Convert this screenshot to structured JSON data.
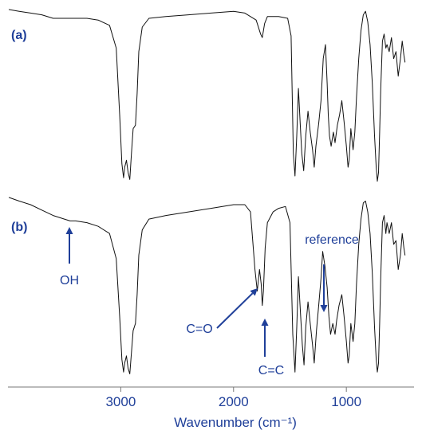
{
  "chart_data": {
    "type": "line",
    "title": "",
    "xlabel": "Wavenumber (cm⁻¹)",
    "ylabel": "",
    "x_reversed": true,
    "xlim": [
      4000,
      400
    ],
    "grid": false,
    "legend": "none",
    "x_ticks": [
      {
        "value": 3000,
        "label": "3000"
      },
      {
        "value": 2000,
        "label": "2000"
      },
      {
        "value": 1000,
        "label": "1000"
      }
    ],
    "panels": [
      {
        "label": "(a)",
        "series": [
          {
            "values": [
              [
                3990,
                1.0
              ],
              [
                3900,
                0.99
              ],
              [
                3800,
                0.98
              ],
              [
                3700,
                0.97
              ],
              [
                3600,
                0.95
              ],
              [
                3500,
                0.95
              ],
              [
                3400,
                0.95
              ],
              [
                3300,
                0.95
              ],
              [
                3200,
                0.94
              ],
              [
                3100,
                0.91
              ],
              [
                3040,
                0.78
              ],
              [
                3010,
                0.4
              ],
              [
                2990,
                0.12
              ],
              [
                2975,
                0.04
              ],
              [
                2965,
                0.1
              ],
              [
                2950,
                0.14
              ],
              [
                2935,
                0.07
              ],
              [
                2920,
                0.03
              ],
              [
                2905,
                0.18
              ],
              [
                2890,
                0.32
              ],
              [
                2870,
                0.34
              ],
              [
                2855,
                0.52
              ],
              [
                2840,
                0.76
              ],
              [
                2810,
                0.9
              ],
              [
                2750,
                0.95
              ],
              [
                2600,
                0.96
              ],
              [
                2400,
                0.97
              ],
              [
                2200,
                0.98
              ],
              [
                2000,
                0.99
              ],
              [
                1900,
                0.98
              ],
              [
                1800,
                0.94
              ],
              [
                1760,
                0.86
              ],
              [
                1745,
                0.84
              ],
              [
                1725,
                0.92
              ],
              [
                1700,
                0.96
              ],
              [
                1600,
                0.96
              ],
              [
                1520,
                0.95
              ],
              [
                1490,
                0.85
              ],
              [
                1470,
                0.18
              ],
              [
                1455,
                0.05
              ],
              [
                1440,
                0.28
              ],
              [
                1425,
                0.55
              ],
              [
                1410,
                0.36
              ],
              [
                1395,
                0.18
              ],
              [
                1378,
                0.08
              ],
              [
                1360,
                0.28
              ],
              [
                1340,
                0.42
              ],
              [
                1320,
                0.3
              ],
              [
                1300,
                0.2
              ],
              [
                1285,
                0.1
              ],
              [
                1270,
                0.22
              ],
              [
                1245,
                0.35
              ],
              [
                1225,
                0.48
              ],
              [
                1205,
                0.72
              ],
              [
                1185,
                0.8
              ],
              [
                1170,
                0.58
              ],
              [
                1160,
                0.4
              ],
              [
                1150,
                0.28
              ],
              [
                1135,
                0.22
              ],
              [
                1115,
                0.3
              ],
              [
                1100,
                0.24
              ],
              [
                1080,
                0.34
              ],
              [
                1060,
                0.4
              ],
              [
                1040,
                0.48
              ],
              [
                1020,
                0.36
              ],
              [
                1000,
                0.22
              ],
              [
                985,
                0.1
              ],
              [
                975,
                0.14
              ],
              [
                960,
                0.32
              ],
              [
                940,
                0.2
              ],
              [
                925,
                0.3
              ],
              [
                910,
                0.5
              ],
              [
                890,
                0.72
              ],
              [
                870,
                0.88
              ],
              [
                850,
                0.97
              ],
              [
                830,
                0.99
              ],
              [
                810,
                0.93
              ],
              [
                790,
                0.8
              ],
              [
                770,
                0.58
              ],
              [
                750,
                0.28
              ],
              [
                735,
                0.1
              ],
              [
                725,
                0.02
              ],
              [
                715,
                0.07
              ],
              [
                705,
                0.3
              ],
              [
                695,
                0.55
              ],
              [
                680,
                0.82
              ],
              [
                665,
                0.86
              ],
              [
                650,
                0.78
              ],
              [
                640,
                0.8
              ],
              [
                620,
                0.76
              ],
              [
                600,
                0.84
              ],
              [
                580,
                0.72
              ],
              [
                560,
                0.76
              ],
              [
                540,
                0.62
              ],
              [
                520,
                0.72
              ],
              [
                505,
                0.82
              ],
              [
                490,
                0.74
              ],
              [
                480,
                0.7
              ]
            ]
          }
        ]
      },
      {
        "label": "(b)",
        "series": [
          {
            "values": [
              [
                3990,
                1.0
              ],
              [
                3900,
                0.98
              ],
              [
                3800,
                0.96
              ],
              [
                3700,
                0.93
              ],
              [
                3600,
                0.9
              ],
              [
                3500,
                0.88
              ],
              [
                3450,
                0.87
              ],
              [
                3400,
                0.87
              ],
              [
                3300,
                0.86
              ],
              [
                3200,
                0.84
              ],
              [
                3100,
                0.8
              ],
              [
                3040,
                0.66
              ],
              [
                3010,
                0.34
              ],
              [
                2990,
                0.1
              ],
              [
                2975,
                0.03
              ],
              [
                2965,
                0.08
              ],
              [
                2950,
                0.12
              ],
              [
                2935,
                0.05
              ],
              [
                2920,
                0.02
              ],
              [
                2905,
                0.14
              ],
              [
                2890,
                0.26
              ],
              [
                2870,
                0.3
              ],
              [
                2855,
                0.46
              ],
              [
                2840,
                0.68
              ],
              [
                2810,
                0.82
              ],
              [
                2750,
                0.88
              ],
              [
                2600,
                0.9
              ],
              [
                2400,
                0.92
              ],
              [
                2200,
                0.94
              ],
              [
                2000,
                0.96
              ],
              [
                1900,
                0.96
              ],
              [
                1850,
                0.92
              ],
              [
                1810,
                0.6
              ],
              [
                1790,
                0.48
              ],
              [
                1770,
                0.6
              ],
              [
                1755,
                0.52
              ],
              [
                1745,
                0.4
              ],
              [
                1735,
                0.48
              ],
              [
                1720,
                0.72
              ],
              [
                1700,
                0.86
              ],
              [
                1650,
                0.92
              ],
              [
                1600,
                0.94
              ],
              [
                1540,
                0.95
              ],
              [
                1500,
                0.86
              ],
              [
                1475,
                0.24
              ],
              [
                1455,
                0.03
              ],
              [
                1440,
                0.28
              ],
              [
                1425,
                0.56
              ],
              [
                1405,
                0.34
              ],
              [
                1390,
                0.18
              ],
              [
                1375,
                0.07
              ],
              [
                1360,
                0.28
              ],
              [
                1340,
                0.42
              ],
              [
                1320,
                0.3
              ],
              [
                1300,
                0.18
              ],
              [
                1285,
                0.08
              ],
              [
                1265,
                0.26
              ],
              [
                1245,
                0.4
              ],
              [
                1225,
                0.55
              ],
              [
                1210,
                0.7
              ],
              [
                1190,
                0.62
              ],
              [
                1170,
                0.5
              ],
              [
                1155,
                0.34
              ],
              [
                1140,
                0.24
              ],
              [
                1120,
                0.3
              ],
              [
                1100,
                0.24
              ],
              [
                1085,
                0.32
              ],
              [
                1065,
                0.4
              ],
              [
                1040,
                0.46
              ],
              [
                1020,
                0.34
              ],
              [
                1000,
                0.2
              ],
              [
                985,
                0.08
              ],
              [
                975,
                0.12
              ],
              [
                960,
                0.3
              ],
              [
                940,
                0.2
              ],
              [
                925,
                0.3
              ],
              [
                910,
                0.52
              ],
              [
                890,
                0.74
              ],
              [
                870,
                0.88
              ],
              [
                850,
                0.97
              ],
              [
                830,
                0.98
              ],
              [
                810,
                0.92
              ],
              [
                790,
                0.8
              ],
              [
                770,
                0.58
              ],
              [
                750,
                0.28
              ],
              [
                735,
                0.1
              ],
              [
                725,
                0.03
              ],
              [
                715,
                0.08
              ],
              [
                705,
                0.3
              ],
              [
                695,
                0.56
              ],
              [
                680,
                0.86
              ],
              [
                665,
                0.9
              ],
              [
                650,
                0.8
              ],
              [
                640,
                0.86
              ],
              [
                620,
                0.8
              ],
              [
                600,
                0.86
              ],
              [
                580,
                0.74
              ],
              [
                560,
                0.76
              ],
              [
                540,
                0.6
              ],
              [
                520,
                0.68
              ],
              [
                505,
                0.8
              ],
              [
                490,
                0.72
              ],
              [
                480,
                0.68
              ]
            ]
          }
        ],
        "annotations": [
          {
            "text": "OH",
            "x": 3450
          },
          {
            "text": "C=O",
            "x": 1790
          },
          {
            "text": "C=C",
            "x": 1745
          },
          {
            "text": "reference",
            "x": 1245
          }
        ]
      }
    ]
  }
}
